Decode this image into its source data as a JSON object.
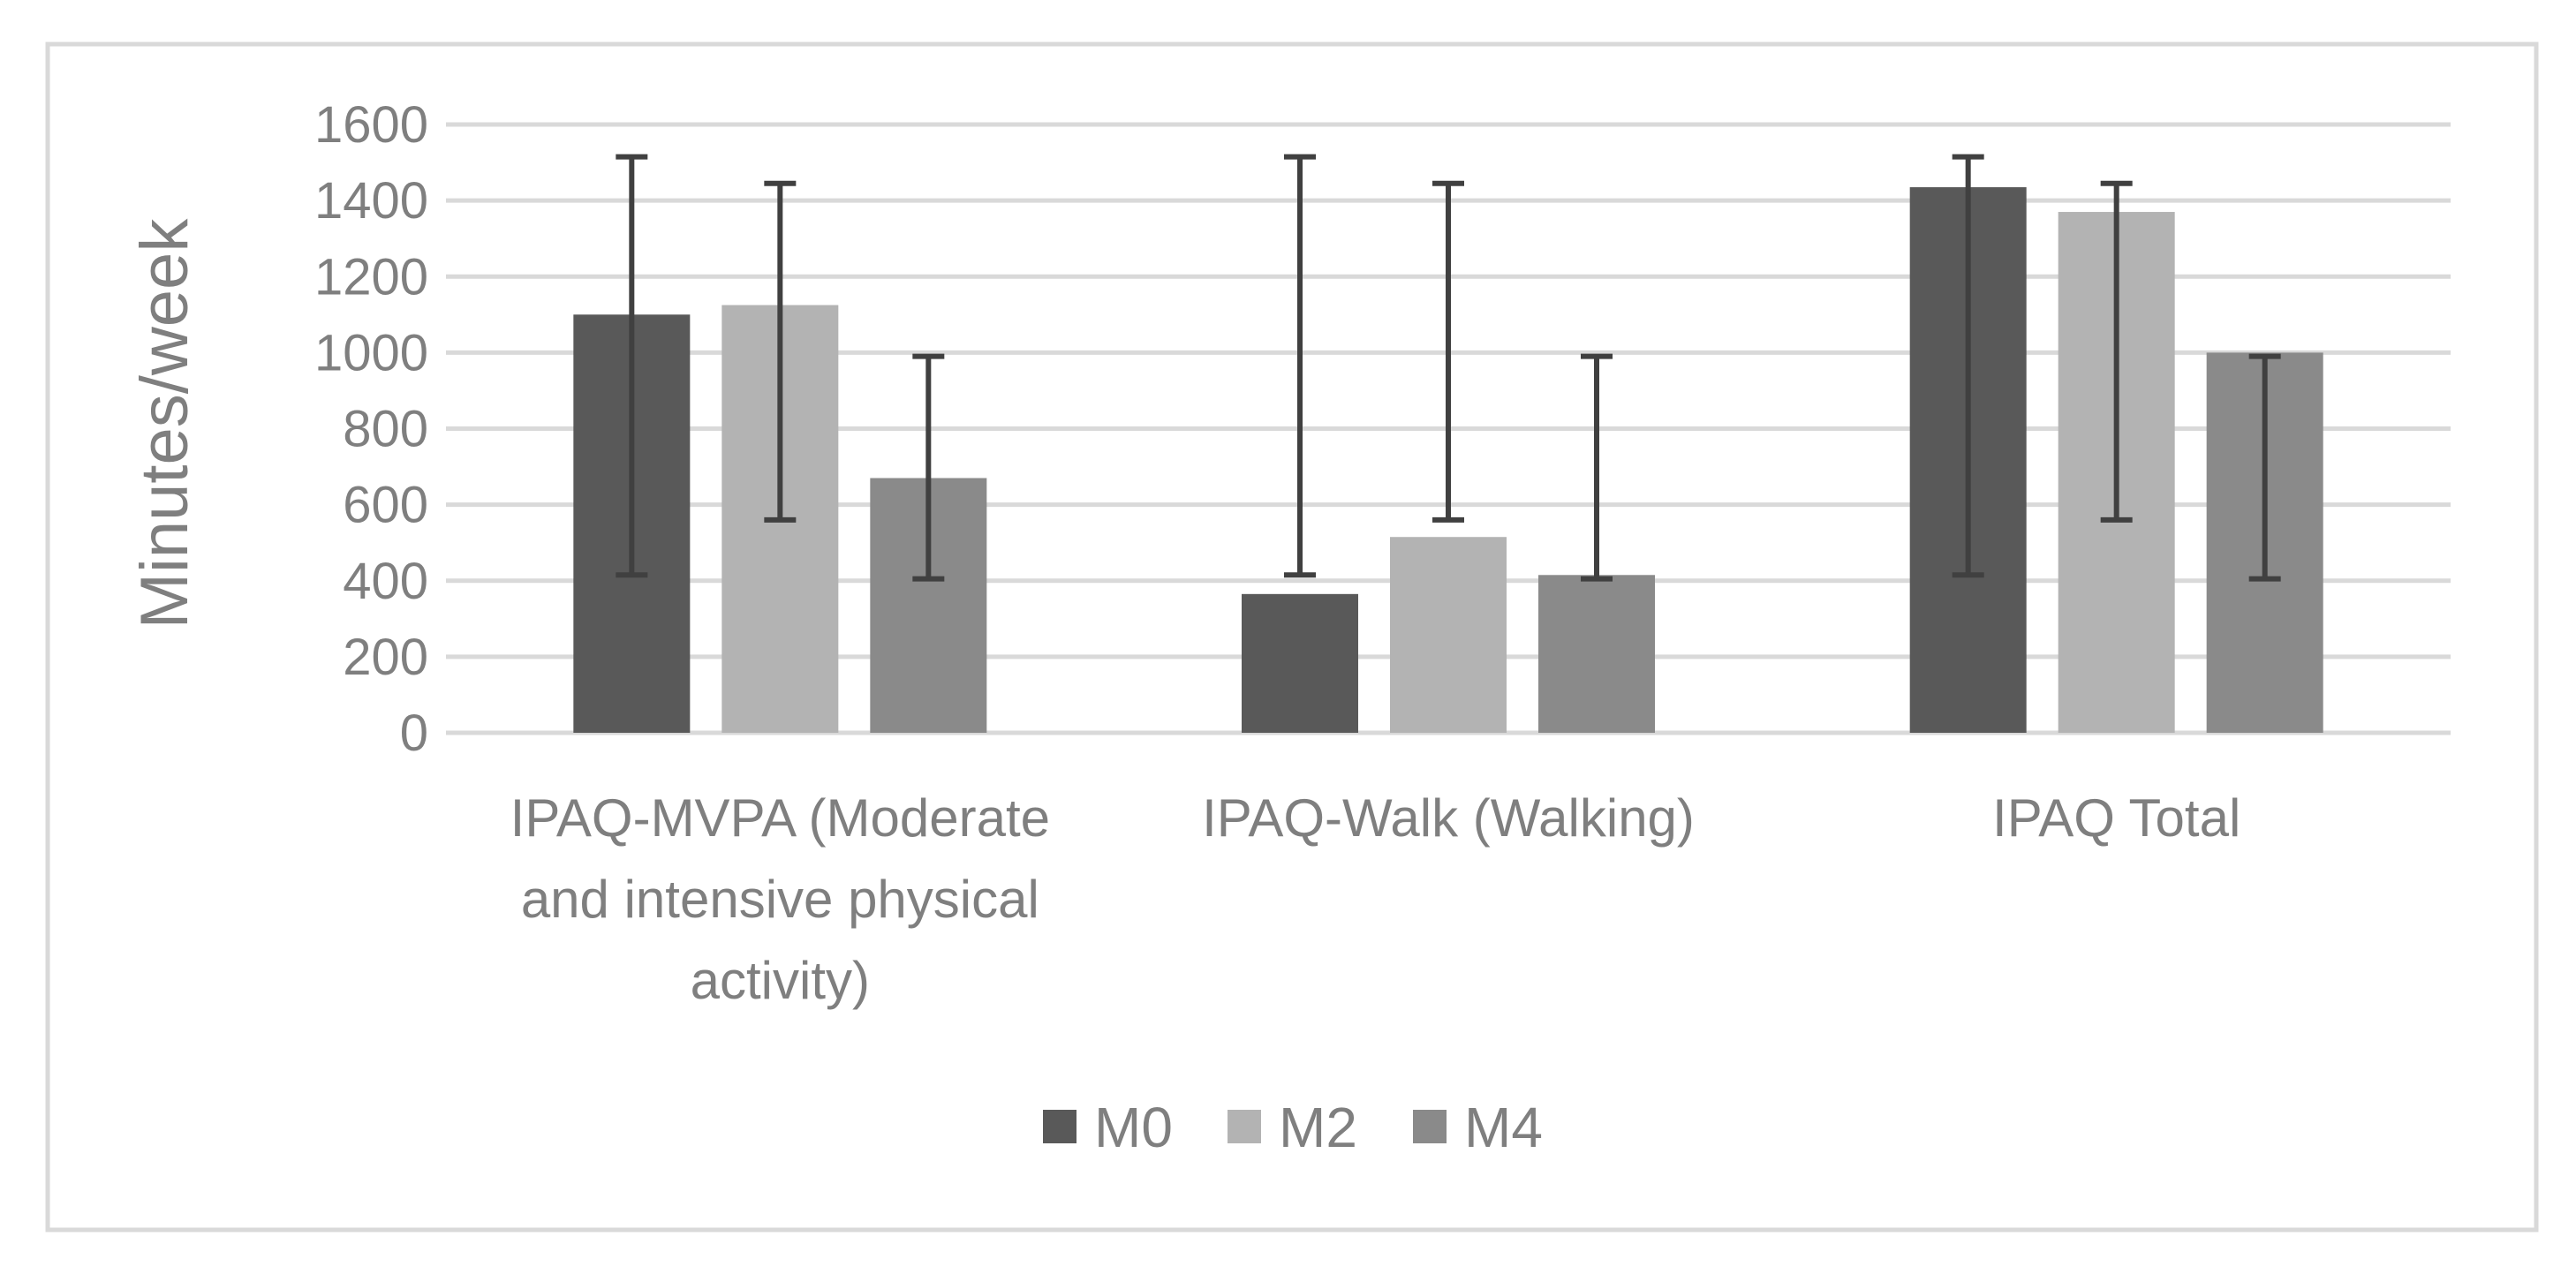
{
  "chart_data": {
    "type": "bar",
    "categories": [
      [
        "IPAQ-MVPA (Moderate",
        "and intensive physical",
        "activity)"
      ],
      [
        "IPAQ-Walk (Walking)"
      ],
      [
        "IPAQ Total"
      ]
    ],
    "series": [
      {
        "name": "M0",
        "color": "#595959",
        "values": [
          1100,
          365,
          1435
        ],
        "error_low": [
          415,
          415,
          415
        ],
        "error_high": [
          1515,
          1515,
          1515
        ]
      },
      {
        "name": "M2",
        "color": "#b3b3b3",
        "values": [
          1125,
          515,
          1370
        ],
        "error_low": [
          560,
          560,
          560
        ],
        "error_high": [
          1445,
          1445,
          1445
        ]
      },
      {
        "name": "M4",
        "color": "#8a8a8a",
        "values": [
          670,
          415,
          1000
        ],
        "error_low": [
          405,
          405,
          405
        ],
        "error_high": [
          990,
          990,
          990
        ]
      }
    ],
    "ylabel": "Minutes/week",
    "xlabel": "",
    "ylim": [
      0,
      1600
    ],
    "yticks": [
      0,
      200,
      400,
      600,
      800,
      1000,
      1200,
      1400,
      1600
    ],
    "grid": true,
    "legend_position": "bottom",
    "colors": {
      "grid": "#d9d9d9",
      "error_bar": "#404040",
      "frame": "#d9d9d9",
      "text": "#7f7f7f"
    }
  }
}
